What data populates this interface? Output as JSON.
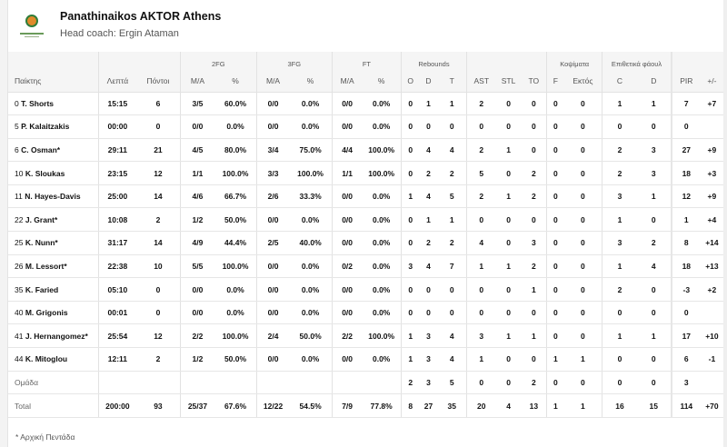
{
  "team": {
    "name": "Panathinaikos AKTOR Athens",
    "coach": "Head coach: Ergin Ataman"
  },
  "groups": {
    "fg2": "2FG",
    "fg3": "3FG",
    "ft": "FT",
    "reb": "Rebounds",
    "blk": "Κοψίματα",
    "fouls": "Επιθετικά φάουλ"
  },
  "columns": [
    "Παίκτης",
    "Λεπτά",
    "Πόντοι",
    "M/A",
    "%",
    "M/A",
    "%",
    "M/A",
    "%",
    "O",
    "D",
    "T",
    "AST",
    "STL",
    "TO",
    "F",
    "Εκτός",
    "C",
    "D",
    "PIR",
    "+/-"
  ],
  "rows": [
    {
      "num": "0",
      "name": "T. Shorts",
      "v": [
        "15:15",
        "6",
        "3/5",
        "60.0%",
        "0/0",
        "0.0%",
        "0/0",
        "0.0%",
        "0",
        "1",
        "1",
        "2",
        "0",
        "0",
        "0",
        "0",
        "1",
        "1",
        "7",
        "+7"
      ]
    },
    {
      "num": "5",
      "name": "P. Kalaitzakis",
      "v": [
        "00:00",
        "0",
        "0/0",
        "0.0%",
        "0/0",
        "0.0%",
        "0/0",
        "0.0%",
        "0",
        "0",
        "0",
        "0",
        "0",
        "0",
        "0",
        "0",
        "0",
        "0",
        "0",
        ""
      ]
    },
    {
      "num": "6",
      "name": "C. Osman*",
      "v": [
        "29:11",
        "21",
        "4/5",
        "80.0%",
        "3/4",
        "75.0%",
        "4/4",
        "100.0%",
        "0",
        "4",
        "4",
        "2",
        "1",
        "0",
        "0",
        "0",
        "2",
        "3",
        "27",
        "+9"
      ]
    },
    {
      "num": "10",
      "name": "K. Sloukas",
      "v": [
        "23:15",
        "12",
        "1/1",
        "100.0%",
        "3/3",
        "100.0%",
        "1/1",
        "100.0%",
        "0",
        "2",
        "2",
        "5",
        "0",
        "2",
        "0",
        "0",
        "2",
        "3",
        "18",
        "+3"
      ]
    },
    {
      "num": "11",
      "name": "N. Hayes-Davis",
      "v": [
        "25:00",
        "14",
        "4/6",
        "66.7%",
        "2/6",
        "33.3%",
        "0/0",
        "0.0%",
        "1",
        "4",
        "5",
        "2",
        "1",
        "2",
        "0",
        "0",
        "3",
        "1",
        "12",
        "+9"
      ]
    },
    {
      "num": "22",
      "name": "J. Grant*",
      "v": [
        "10:08",
        "2",
        "1/2",
        "50.0%",
        "0/0",
        "0.0%",
        "0/0",
        "0.0%",
        "0",
        "1",
        "1",
        "0",
        "0",
        "0",
        "0",
        "0",
        "1",
        "0",
        "1",
        "+4"
      ]
    },
    {
      "num": "25",
      "name": "K. Nunn*",
      "v": [
        "31:17",
        "14",
        "4/9",
        "44.4%",
        "2/5",
        "40.0%",
        "0/0",
        "0.0%",
        "0",
        "2",
        "2",
        "4",
        "0",
        "3",
        "0",
        "0",
        "3",
        "2",
        "8",
        "+14"
      ]
    },
    {
      "num": "26",
      "name": "M. Lessort*",
      "v": [
        "22:38",
        "10",
        "5/5",
        "100.0%",
        "0/0",
        "0.0%",
        "0/2",
        "0.0%",
        "3",
        "4",
        "7",
        "1",
        "1",
        "2",
        "0",
        "0",
        "1",
        "4",
        "18",
        "+13"
      ]
    },
    {
      "num": "35",
      "name": "K. Faried",
      "v": [
        "05:10",
        "0",
        "0/0",
        "0.0%",
        "0/0",
        "0.0%",
        "0/0",
        "0.0%",
        "0",
        "0",
        "0",
        "0",
        "0",
        "1",
        "0",
        "0",
        "2",
        "0",
        "-3",
        "+2"
      ]
    },
    {
      "num": "40",
      "name": "M. Grigonis",
      "v": [
        "00:01",
        "0",
        "0/0",
        "0.0%",
        "0/0",
        "0.0%",
        "0/0",
        "0.0%",
        "0",
        "0",
        "0",
        "0",
        "0",
        "0",
        "0",
        "0",
        "0",
        "0",
        "0",
        ""
      ]
    },
    {
      "num": "41",
      "name": "J. Hernangomez*",
      "v": [
        "25:54",
        "12",
        "2/2",
        "100.0%",
        "2/4",
        "50.0%",
        "2/2",
        "100.0%",
        "1",
        "3",
        "4",
        "3",
        "1",
        "1",
        "0",
        "0",
        "1",
        "1",
        "17",
        "+10"
      ]
    },
    {
      "num": "44",
      "name": "K. Mitoglou",
      "v": [
        "12:11",
        "2",
        "1/2",
        "50.0%",
        "0/0",
        "0.0%",
        "0/0",
        "0.0%",
        "1",
        "3",
        "4",
        "1",
        "0",
        "0",
        "1",
        "1",
        "0",
        "0",
        "6",
        "-1"
      ]
    }
  ],
  "team_row": {
    "label": "Ομάδα",
    "v": [
      "",
      "",
      "",
      "",
      "",
      "",
      "",
      "",
      "2",
      "3",
      "5",
      "0",
      "0",
      "2",
      "0",
      "0",
      "0",
      "0",
      "3",
      ""
    ]
  },
  "total_row": {
    "label": "Total",
    "v": [
      "200:00",
      "93",
      "25/37",
      "67.6%",
      "12/22",
      "54.5%",
      "7/9",
      "77.8%",
      "8",
      "27",
      "35",
      "20",
      "4",
      "13",
      "1",
      "1",
      "16",
      "15",
      "114",
      "+70"
    ]
  },
  "footnote": "* Αρχική Πεντάδα"
}
